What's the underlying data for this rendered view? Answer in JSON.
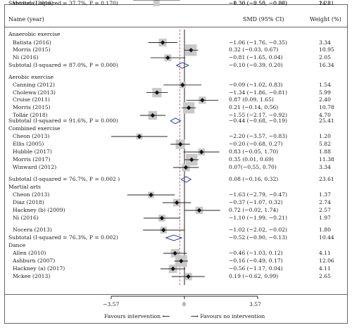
{
  "header": {
    "name": "Name (year)",
    "smd": "SMD (95% CI)",
    "weight": "Weight (%)"
  },
  "favours": {
    "left": "Favours intervention",
    "right": "Favours no intervention"
  },
  "chart_data": {
    "type": "forest",
    "xlim": [
      -3.57,
      3.57
    ],
    "xticks": [
      "−3.57",
      "0",
      "3.57"
    ],
    "reference_line": 0,
    "rows": [
      {
        "kind": "group",
        "label": "Anaerobic exercise"
      },
      {
        "kind": "study",
        "label": "Batista (2016)",
        "est": -1.06,
        "lo": -1.76,
        "hi": -0.35,
        "w": 3.34,
        "ci": "−1.06 (−1.76, −0.35)",
        "wt": "3.34"
      },
      {
        "kind": "study",
        "label": "Morris (2015)",
        "est": 0.32,
        "lo": -0.03,
        "hi": 0.67,
        "w": 10.95,
        "ci": "0.32 (−0.03, 0.67)",
        "wt": "10.95"
      },
      {
        "kind": "study",
        "label": "Ni (2016)",
        "est": -0.81,
        "lo": -1.65,
        "hi": 0.04,
        "w": 2.05,
        "ci": "−0.81 (−1.65, 0.04)",
        "wt": "2.05"
      },
      {
        "kind": "subtotal",
        "label": "Subtotal (I-squared = 87.0%, P = 0.000)",
        "est": -0.1,
        "lo": -0.39,
        "hi": 0.2,
        "ci": "−0.10 (−0.39, 0.20)",
        "wt": "16.34"
      },
      {
        "kind": "group",
        "label": "Aerobic exercise"
      },
      {
        "kind": "study",
        "label": "Canning (2012)",
        "est": -0.09,
        "lo": -1.02,
        "hi": 0.83,
        "w": 1.54,
        "ci": "−0.09 (−1.02, 0.83)",
        "wt": "1.54"
      },
      {
        "kind": "study",
        "label": "Cholewa (2013)",
        "est": -1.34,
        "lo": -1.86,
        "hi": -0.81,
        "w": 5.99,
        "ci": "−1.34 (−1.86, −0.81)",
        "wt": "5.99"
      },
      {
        "kind": "study",
        "label": "Cruise (2011)",
        "est": 0.87,
        "lo": 0.09,
        "hi": 1.65,
        "w": 2.4,
        "ci": "0.87 (0.09, 1.65)",
        "wt": "2.40"
      },
      {
        "kind": "study",
        "label": "Morris (2015)",
        "est": 0.21,
        "lo": -0.14,
        "hi": 0.56,
        "w": 10.78,
        "ci": "0.21 (−0.14, 0.56)",
        "wt": "10.78"
      },
      {
        "kind": "study",
        "label": "Tollár (2018)",
        "est": -1.55,
        "lo": -2.17,
        "hi": -0.92,
        "w": 4.7,
        "ci": "−1.55 (−2.17, −0.92)",
        "wt": "4.70"
      },
      {
        "kind": "subtotal",
        "label": "Subtotal (I-squared = 91.6%, P = 0.000)",
        "est": -0.44,
        "lo": -0.68,
        "hi": -0.19,
        "ci": "−0.44 (−0.68, −0.19)",
        "wt": "25.41"
      },
      {
        "kind": "group",
        "label": "Combined exercise"
      },
      {
        "kind": "study",
        "label": "Cheon (2013)",
        "est": -2.2,
        "lo": -3.57,
        "hi": -0.83,
        "w": 1.2,
        "ci": "−2.20 (−3.57, −0.83)",
        "wt": "1.20"
      },
      {
        "kind": "study",
        "label": "Ellis (2005)",
        "est": -0.2,
        "lo": -0.68,
        "hi": 0.27,
        "w": 5.82,
        "ci": "−0.20 (−0.68, 0.27)",
        "wt": "5.82"
      },
      {
        "kind": "study",
        "label": "Hubble (2017)",
        "est": 0.83,
        "lo": -0.05,
        "hi": 1.7,
        "w": 1.88,
        "ci": "0.83 (−0.05, 1.70)",
        "wt": "1.88"
      },
      {
        "kind": "study",
        "label": "Morris (2017)",
        "est": 0.35,
        "lo": 0.01,
        "hi": 0.69,
        "w": 11.38,
        "ci": "0.35 (0.01, 0.69)",
        "wt": "11.38"
      },
      {
        "kind": "study",
        "label": "Winward (2012)",
        "est": 0.07,
        "lo": -0.55,
        "hi": 0.7,
        "w": 3.34,
        "ci": "0.07(−0.55, 0.70)",
        "wt": "3.34"
      },
      {
        "kind": "subtotal",
        "label": "Subtotal (I-squared = 76.7%, P = 0.002 )",
        "est": 0.08,
        "lo": -0.16,
        "hi": 0.32,
        "ci": "0.08 (−0.16, 0.32)",
        "wt": "23.61"
      },
      {
        "kind": "group",
        "label": "Martial arts"
      },
      {
        "kind": "study",
        "label": "Cheon (2013)",
        "est": -1.63,
        "lo": -2.79,
        "hi": -0.47,
        "w": 1.37,
        "ci": "−1.63 (−2.79, −0.47)",
        "wt": "1.37"
      },
      {
        "kind": "study",
        "label": "Diaz (2018)",
        "est": -0.37,
        "lo": -1.07,
        "hi": 0.32,
        "w": 2.74,
        "ci": "−0.37 (−1.07, 0.32)",
        "wt": "2.74"
      },
      {
        "kind": "study",
        "label": "Hackney (b) (2009)",
        "est": 0.72,
        "lo": -0.02,
        "hi": 1.74,
        "w": 2.57,
        "ci": "0.72 (−0.02, 1.74)",
        "wt": "2.57"
      },
      {
        "kind": "study",
        "label": "Ni (2016)",
        "est": -1.1,
        "lo": -1.99,
        "hi": -0.21,
        "w": 1.97,
        "ci": "−1.10 (−1.99, −0.21)",
        "wt": "1.97"
      },
      {
        "kind": "study",
        "label": "Nocera (2013)",
        "est": -1.02,
        "lo": -2.02,
        "hi": -0.02,
        "w": 1.8,
        "ci": "−1.02 (−2.02, −0.02)",
        "wt": "1.80"
      },
      {
        "kind": "subtotal",
        "label": "Subtotal (I-squared = 76.3%, P = 0.002)",
        "est": -0.52,
        "lo": -0.9,
        "hi": -0.13,
        "ci": "−0.52 (−0.90, −0.13)",
        "wt": "10.44"
      },
      {
        "kind": "group",
        "label": "Dance"
      },
      {
        "kind": "study",
        "label": "Allen (2010)",
        "est": -0.46,
        "lo": -1.03,
        "hi": 0.12,
        "w": 4.11,
        "ci": "−0.46 (−1.03, 0.12)",
        "wt": "4.11"
      },
      {
        "kind": "study",
        "label": "Ashburn (2007)",
        "est": -0.16,
        "lo": -0.49,
        "hi": 0.17,
        "w": 12.06,
        "ci": "−0.16 (−0.49, 0.17)",
        "wt": "12.06"
      },
      {
        "kind": "study",
        "label": "Hackney (a) (2017)",
        "est": -0.56,
        "lo": -1.17,
        "hi": 0.04,
        "w": 4.11,
        "ci": "−0.56 (−1.17, 0.04)",
        "wt": "4.11"
      },
      {
        "kind": "study",
        "label": "Mckee (2013)",
        "est": 0.19,
        "lo": -0.62,
        "hi": 0.99,
        "w": 2.65,
        "ci": "0.19 (−0.62, 0.99)",
        "wt": "2.65"
      },
      {
        "kind": "study",
        "label": "Ventura (2016)",
        "est": -1.36,
        "lo": -2.5,
        "hi": -0.22,
        "w": 1.28,
        "ci": "−1.36 (−2.50, −0.22)",
        "wt": "1.28"
      },
      {
        "kind": "subtotal",
        "label": "Subtotal (I-squared = 37.7%, P = 0.170)",
        "est": -0.3,
        "lo": -0.55,
        "hi": -0.06,
        "ci": "−0.30 (−0.55, −0.06)",
        "wt": "24.21"
      }
    ]
  }
}
